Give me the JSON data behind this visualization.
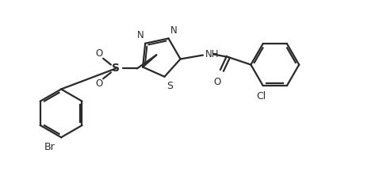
{
  "bg_color": "#ffffff",
  "line_color": "#2a2a2a",
  "line_width": 1.6,
  "font_size": 8.5,
  "figsize": [
    4.73,
    2.22
  ],
  "dpi": 100,
  "xlim": [
    0,
    9.5
  ],
  "ylim": [
    0,
    4.5
  ]
}
